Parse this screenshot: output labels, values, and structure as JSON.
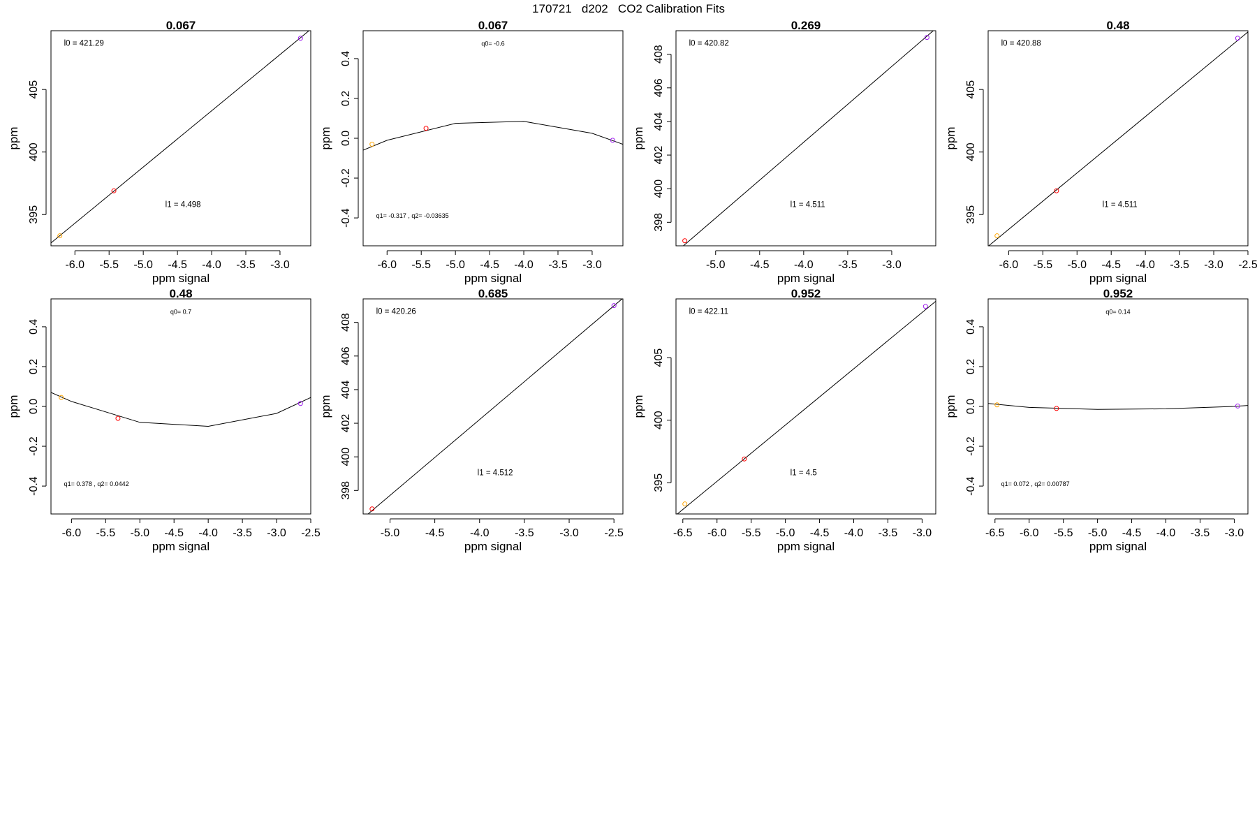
{
  "page_title": "170721   d202   CO2 Calibration Fits",
  "colors": {
    "point_low": "#FFA500",
    "point_mid": "#FF0000",
    "point_high": "#A020F0",
    "line": "#000000"
  },
  "chart_data": [
    {
      "type": "line",
      "title": "0.067",
      "xlabel": "ppm signal",
      "ylabel": "ppm",
      "xlim": [
        -6.35,
        -2.55
      ],
      "ylim": [
        392.5,
        409.7
      ],
      "xticks": [
        "-6.0",
        "-5.5",
        "-5.0",
        "-4.5",
        "-4.0",
        "-3.5",
        "-3.0"
      ],
      "xtick_values": [
        -6.0,
        -5.5,
        -5.0,
        -4.5,
        -4.0,
        -3.5,
        -3.0
      ],
      "yticks": [
        "395",
        "400",
        "405"
      ],
      "ytick_values": [
        395,
        400,
        405
      ],
      "line": {
        "x": [
          -6.35,
          -2.55
        ],
        "y": [
          392.73,
          409.82
        ]
      },
      "points": [
        {
          "x": -6.22,
          "y": 393.3,
          "color": "#FFA500"
        },
        {
          "x": -5.43,
          "y": 396.9,
          "color": "#FF0000"
        },
        {
          "x": -2.7,
          "y": 409.1,
          "color": "#A020F0"
        }
      ],
      "annotations": [
        {
          "text": "l0 =  421.29",
          "ax": 0.05,
          "ay": 0.07,
          "align": "start",
          "size": "normal"
        },
        {
          "text": "l1 =  4.498",
          "ax": 0.44,
          "ay": 0.82,
          "align": "start",
          "size": "normal"
        }
      ]
    },
    {
      "type": "line",
      "title": "0.067",
      "xlabel": "ppm signal",
      "ylabel": "ppm",
      "xlim": [
        -6.35,
        -2.55
      ],
      "ylim": [
        -0.54,
        0.54
      ],
      "xticks": [
        "-6.0",
        "-5.5",
        "-5.0",
        "-4.5",
        "-4.0",
        "-3.5",
        "-3.0"
      ],
      "xtick_values": [
        -6.0,
        -5.5,
        -5.0,
        -4.5,
        -4.0,
        -3.5,
        -3.0
      ],
      "yticks": [
        "-0.4",
        "-0.2",
        "0.0",
        "0.2",
        "0.4"
      ],
      "ytick_values": [
        -0.4,
        -0.2,
        0.0,
        0.2,
        0.4
      ],
      "line": {
        "x": [
          -6.35,
          -6.0,
          -5.0,
          -4.0,
          -3.0,
          -2.55
        ],
        "y": [
          -0.06,
          -0.01,
          0.075,
          0.085,
          0.025,
          -0.03
        ]
      },
      "points": [
        {
          "x": -6.22,
          "y": -0.03,
          "color": "#FFA500"
        },
        {
          "x": -5.43,
          "y": 0.05,
          "color": "#FF0000"
        },
        {
          "x": -2.7,
          "y": -0.01,
          "color": "#A020F0"
        }
      ],
      "annotations": [
        {
          "text": "q0= -0.6",
          "ax": 0.5,
          "ay": 0.07,
          "align": "middle",
          "size": "small"
        },
        {
          "text": "q1= -0.317 , q2= -0.03635",
          "ax": 0.05,
          "ay": 0.87,
          "align": "start",
          "size": "small"
        }
      ]
    },
    {
      "type": "line",
      "title": "0.269",
      "xlabel": "ppm signal",
      "ylabel": "ppm",
      "xlim": [
        -5.45,
        -2.5
      ],
      "ylim": [
        396.6,
        409.4
      ],
      "xticks": [
        "-5.0",
        "-4.5",
        "-4.0",
        "-3.5",
        "-3.0"
      ],
      "xtick_values": [
        -5.0,
        -4.5,
        -4.0,
        -3.5,
        -3.0
      ],
      "yticks": [
        "398",
        "400",
        "402",
        "404",
        "406",
        "408"
      ],
      "ytick_values": [
        398,
        400,
        402,
        404,
        406,
        408
      ],
      "line": {
        "x": [
          -5.45,
          -2.5
        ],
        "y": [
          396.22,
          409.53
        ]
      },
      "points": [
        {
          "x": -5.35,
          "y": 396.9,
          "color": "#FF0000"
        },
        {
          "x": -2.6,
          "y": 409.0,
          "color": "#A020F0"
        }
      ],
      "annotations": [
        {
          "text": "l0 =  420.82",
          "ax": 0.05,
          "ay": 0.07,
          "align": "start",
          "size": "normal"
        },
        {
          "text": "l1 =  4.511",
          "ax": 0.44,
          "ay": 0.82,
          "align": "start",
          "size": "normal"
        }
      ]
    },
    {
      "type": "line",
      "title": "0.48",
      "xlabel": "ppm signal",
      "ylabel": "ppm",
      "xlim": [
        -6.3,
        -2.5
      ],
      "ylim": [
        392.5,
        409.7
      ],
      "xticks": [
        "-6.0",
        "-5.5",
        "-5.0",
        "-4.5",
        "-4.0",
        "-3.5",
        "-3.0",
        "-2.5"
      ],
      "xtick_values": [
        -6.0,
        -5.5,
        -5.0,
        -4.5,
        -4.0,
        -3.5,
        -3.0,
        -2.5
      ],
      "yticks": [
        "395",
        "400",
        "405"
      ],
      "ytick_values": [
        395,
        400,
        405
      ],
      "line": {
        "x": [
          -6.3,
          -2.5
        ],
        "y": [
          392.46,
          409.6
        ]
      },
      "points": [
        {
          "x": -6.17,
          "y": 393.3,
          "color": "#FFA500"
        },
        {
          "x": -5.3,
          "y": 396.9,
          "color": "#FF0000"
        },
        {
          "x": -2.65,
          "y": 409.1,
          "color": "#A020F0"
        }
      ],
      "annotations": [
        {
          "text": "l0 =  420.88",
          "ax": 0.05,
          "ay": 0.07,
          "align": "start",
          "size": "normal"
        },
        {
          "text": "l1 =  4.511",
          "ax": 0.44,
          "ay": 0.82,
          "align": "start",
          "size": "normal"
        }
      ]
    },
    {
      "type": "line",
      "title": "0.48",
      "xlabel": "ppm signal",
      "ylabel": "ppm",
      "xlim": [
        -6.3,
        -2.5
      ],
      "ylim": [
        -0.54,
        0.54
      ],
      "xticks": [
        "-6.0",
        "-5.5",
        "-5.0",
        "-4.5",
        "-4.0",
        "-3.5",
        "-3.0",
        "-2.5"
      ],
      "xtick_values": [
        -6.0,
        -5.5,
        -5.0,
        -4.5,
        -4.0,
        -3.5,
        -3.0,
        -2.5
      ],
      "yticks": [
        "-0.4",
        "-0.2",
        "0.0",
        "0.2",
        "0.4"
      ],
      "ytick_values": [
        -0.4,
        -0.2,
        0.0,
        0.2,
        0.4
      ],
      "line": {
        "x": [
          -6.3,
          -6.0,
          -5.0,
          -4.0,
          -3.0,
          -2.5
        ],
        "y": [
          0.07,
          0.025,
          -0.08,
          -0.1,
          -0.035,
          0.045
        ]
      },
      "points": [
        {
          "x": -6.15,
          "y": 0.045,
          "color": "#FFA500"
        },
        {
          "x": -5.32,
          "y": -0.06,
          "color": "#FF0000"
        },
        {
          "x": -2.65,
          "y": 0.015,
          "color": "#A020F0"
        }
      ],
      "annotations": [
        {
          "text": "q0= 0.7",
          "ax": 0.5,
          "ay": 0.07,
          "align": "middle",
          "size": "small"
        },
        {
          "text": "q1= 0.378 , q2= 0.0442",
          "ax": 0.05,
          "ay": 0.87,
          "align": "start",
          "size": "small"
        }
      ]
    },
    {
      "type": "line",
      "title": "0.685",
      "xlabel": "ppm signal",
      "ylabel": "ppm",
      "xlim": [
        -5.3,
        -2.4
      ],
      "ylim": [
        396.6,
        409.4
      ],
      "xticks": [
        "-5.0",
        "-4.5",
        "-4.0",
        "-3.5",
        "-3.0",
        "-2.5"
      ],
      "xtick_values": [
        -5.0,
        -4.5,
        -4.0,
        -3.5,
        -3.0,
        -2.5
      ],
      "yticks": [
        "398",
        "400",
        "402",
        "404",
        "406",
        "408"
      ],
      "ytick_values": [
        398,
        400,
        402,
        404,
        406,
        408
      ],
      "line": {
        "x": [
          -5.3,
          -2.4
        ],
        "y": [
          396.35,
          409.44
        ]
      },
      "points": [
        {
          "x": -5.2,
          "y": 396.9,
          "color": "#FF0000"
        },
        {
          "x": -2.5,
          "y": 409.0,
          "color": "#A020F0"
        }
      ],
      "annotations": [
        {
          "text": "l0 =  420.26",
          "ax": 0.05,
          "ay": 0.07,
          "align": "start",
          "size": "normal"
        },
        {
          "text": "l1 =  4.512",
          "ax": 0.44,
          "ay": 0.82,
          "align": "start",
          "size": "normal"
        }
      ]
    },
    {
      "type": "line",
      "title": "0.952",
      "xlabel": "ppm signal",
      "ylabel": "ppm",
      "xlim": [
        -6.6,
        -2.8
      ],
      "ylim": [
        392.5,
        409.7
      ],
      "xticks": [
        "-6.5",
        "-6.0",
        "-5.5",
        "-5.0",
        "-4.5",
        "-4.0",
        "-3.5",
        "-3.0"
      ],
      "xtick_values": [
        -6.5,
        -6.0,
        -5.5,
        -5.0,
        -4.5,
        -4.0,
        -3.5,
        -3.0
      ],
      "yticks": [
        "395",
        "400",
        "405"
      ],
      "ytick_values": [
        395,
        400,
        405
      ],
      "line": {
        "x": [
          -6.6,
          -2.8
        ],
        "y": [
          392.41,
          409.51
        ]
      },
      "points": [
        {
          "x": -6.47,
          "y": 393.3,
          "color": "#FFA500"
        },
        {
          "x": -5.6,
          "y": 396.9,
          "color": "#FF0000"
        },
        {
          "x": -2.95,
          "y": 409.1,
          "color": "#A020F0"
        }
      ],
      "annotations": [
        {
          "text": "l0 =  422.11",
          "ax": 0.05,
          "ay": 0.07,
          "align": "start",
          "size": "normal"
        },
        {
          "text": "l1 =  4.5",
          "ax": 0.44,
          "ay": 0.82,
          "align": "start",
          "size": "normal"
        }
      ]
    },
    {
      "type": "line",
      "title": "0.952",
      "xlabel": "ppm signal",
      "ylabel": "ppm",
      "xlim": [
        -6.6,
        -2.8
      ],
      "ylim": [
        -0.54,
        0.54
      ],
      "xticks": [
        "-6.5",
        "-6.0",
        "-5.5",
        "-5.0",
        "-4.5",
        "-4.0",
        "-3.5",
        "-3.0"
      ],
      "xtick_values": [
        -6.5,
        -6.0,
        -5.5,
        -5.0,
        -4.5,
        -4.0,
        -3.5,
        -3.0
      ],
      "yticks": [
        "-0.4",
        "-0.2",
        "0.0",
        "0.2",
        "0.4"
      ],
      "ytick_values": [
        -0.4,
        -0.2,
        0.0,
        0.2,
        0.4
      ],
      "line": {
        "x": [
          -6.6,
          -6.0,
          -5.0,
          -4.0,
          -3.0,
          -2.8
        ],
        "y": [
          0.015,
          -0.005,
          -0.015,
          -0.012,
          0.0,
          0.005
        ]
      },
      "points": [
        {
          "x": -6.47,
          "y": 0.008,
          "color": "#FFA500"
        },
        {
          "x": -5.6,
          "y": -0.01,
          "color": "#FF0000"
        },
        {
          "x": -2.95,
          "y": 0.002,
          "color": "#A020F0"
        }
      ],
      "annotations": [
        {
          "text": "q0= 0.14",
          "ax": 0.5,
          "ay": 0.07,
          "align": "middle",
          "size": "small"
        },
        {
          "text": "q1= 0.072 , q2= 0.00787",
          "ax": 0.05,
          "ay": 0.87,
          "align": "start",
          "size": "small"
        }
      ]
    }
  ]
}
